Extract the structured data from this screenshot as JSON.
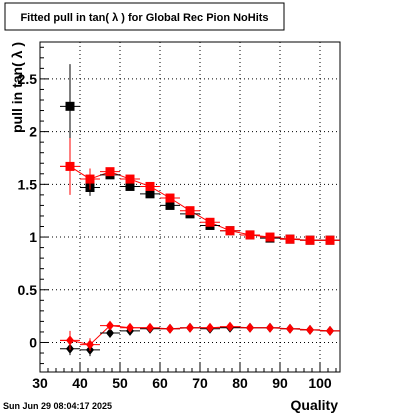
{
  "chart_data": {
    "type": "scatter",
    "title": "Fitted pull in tan( λ ) for Global Rec Pion NoHits",
    "xlabel": "Quality",
    "ylabel": "pull in tan( λ )",
    "xlim": [
      30,
      105
    ],
    "ylim": [
      -0.28,
      2.85
    ],
    "x_ticks": [
      30,
      40,
      50,
      60,
      70,
      80,
      90,
      100
    ],
    "y_ticks": [
      0,
      0.5,
      1,
      1.5,
      2,
      2.5
    ],
    "x_tick_labels": [
      "30",
      "40",
      "50",
      "60",
      "70",
      "80",
      "90",
      "100"
    ],
    "y_tick_labels": [
      "0",
      "0.5",
      "1",
      "1.5",
      "2",
      "2.5"
    ],
    "grid": true,
    "footer": "Sun Jun 29 08:04:17 2025",
    "series": [
      {
        "marker": "square",
        "color": "#000000",
        "x": [
          37.5,
          42.5,
          47.5,
          52.5,
          57.5,
          62.5,
          67.5,
          72.5,
          77.5,
          82.5,
          87.5,
          92.5,
          97.5,
          102.5
        ],
        "y": [
          2.24,
          1.47,
          1.59,
          1.48,
          1.41,
          1.3,
          1.22,
          1.11,
          1.06,
          1.02,
          0.99,
          0.98,
          0.97,
          0.97
        ],
        "yerr": [
          0.4,
          0.08,
          0.04,
          0.03,
          0.03,
          0.03,
          0.02,
          0.02,
          0.02,
          0.02,
          0.02,
          0.02,
          0.02,
          0.02
        ]
      },
      {
        "marker": "square",
        "color": "#ff0000",
        "x": [
          37.5,
          42.5,
          47.5,
          52.5,
          57.5,
          62.5,
          67.5,
          72.5,
          77.5,
          82.5,
          87.5,
          92.5,
          97.5,
          102.5
        ],
        "y": [
          1.67,
          1.55,
          1.62,
          1.55,
          1.48,
          1.37,
          1.25,
          1.14,
          1.06,
          1.02,
          1.0,
          0.98,
          0.97,
          0.97
        ],
        "yerr": [
          0.27,
          0.1,
          0.04,
          0.03,
          0.03,
          0.03,
          0.02,
          0.02,
          0.02,
          0.02,
          0.02,
          0.02,
          0.02,
          0.02
        ],
        "fit_curve": true
      },
      {
        "marker": "diamond",
        "color": "#000000",
        "x": [
          37.5,
          42.5,
          47.5,
          52.5,
          57.5,
          62.5,
          67.5,
          72.5,
          77.5,
          82.5,
          87.5,
          92.5,
          97.5,
          102.5
        ],
        "y": [
          -0.06,
          -0.07,
          0.09,
          0.11,
          0.13,
          0.13,
          0.14,
          0.13,
          0.14,
          0.14,
          0.14,
          0.13,
          0.12,
          0.11
        ],
        "yerr": [
          0.06,
          0.06,
          0.02,
          0.02,
          0.02,
          0.02,
          0.02,
          0.02,
          0.02,
          0.02,
          0.02,
          0.02,
          0.02,
          0.02
        ]
      },
      {
        "marker": "diamond",
        "color": "#ff0000",
        "x": [
          37.5,
          42.5,
          47.5,
          52.5,
          57.5,
          62.5,
          67.5,
          72.5,
          77.5,
          82.5,
          87.5,
          92.5,
          97.5,
          102.5
        ],
        "y": [
          0.02,
          -0.02,
          0.16,
          0.14,
          0.14,
          0.13,
          0.14,
          0.14,
          0.15,
          0.14,
          0.14,
          0.13,
          0.12,
          0.11
        ],
        "yerr": [
          0.09,
          0.06,
          0.03,
          0.02,
          0.02,
          0.02,
          0.02,
          0.02,
          0.02,
          0.02,
          0.02,
          0.02,
          0.02,
          0.02
        ],
        "fit_curve": true
      }
    ]
  }
}
